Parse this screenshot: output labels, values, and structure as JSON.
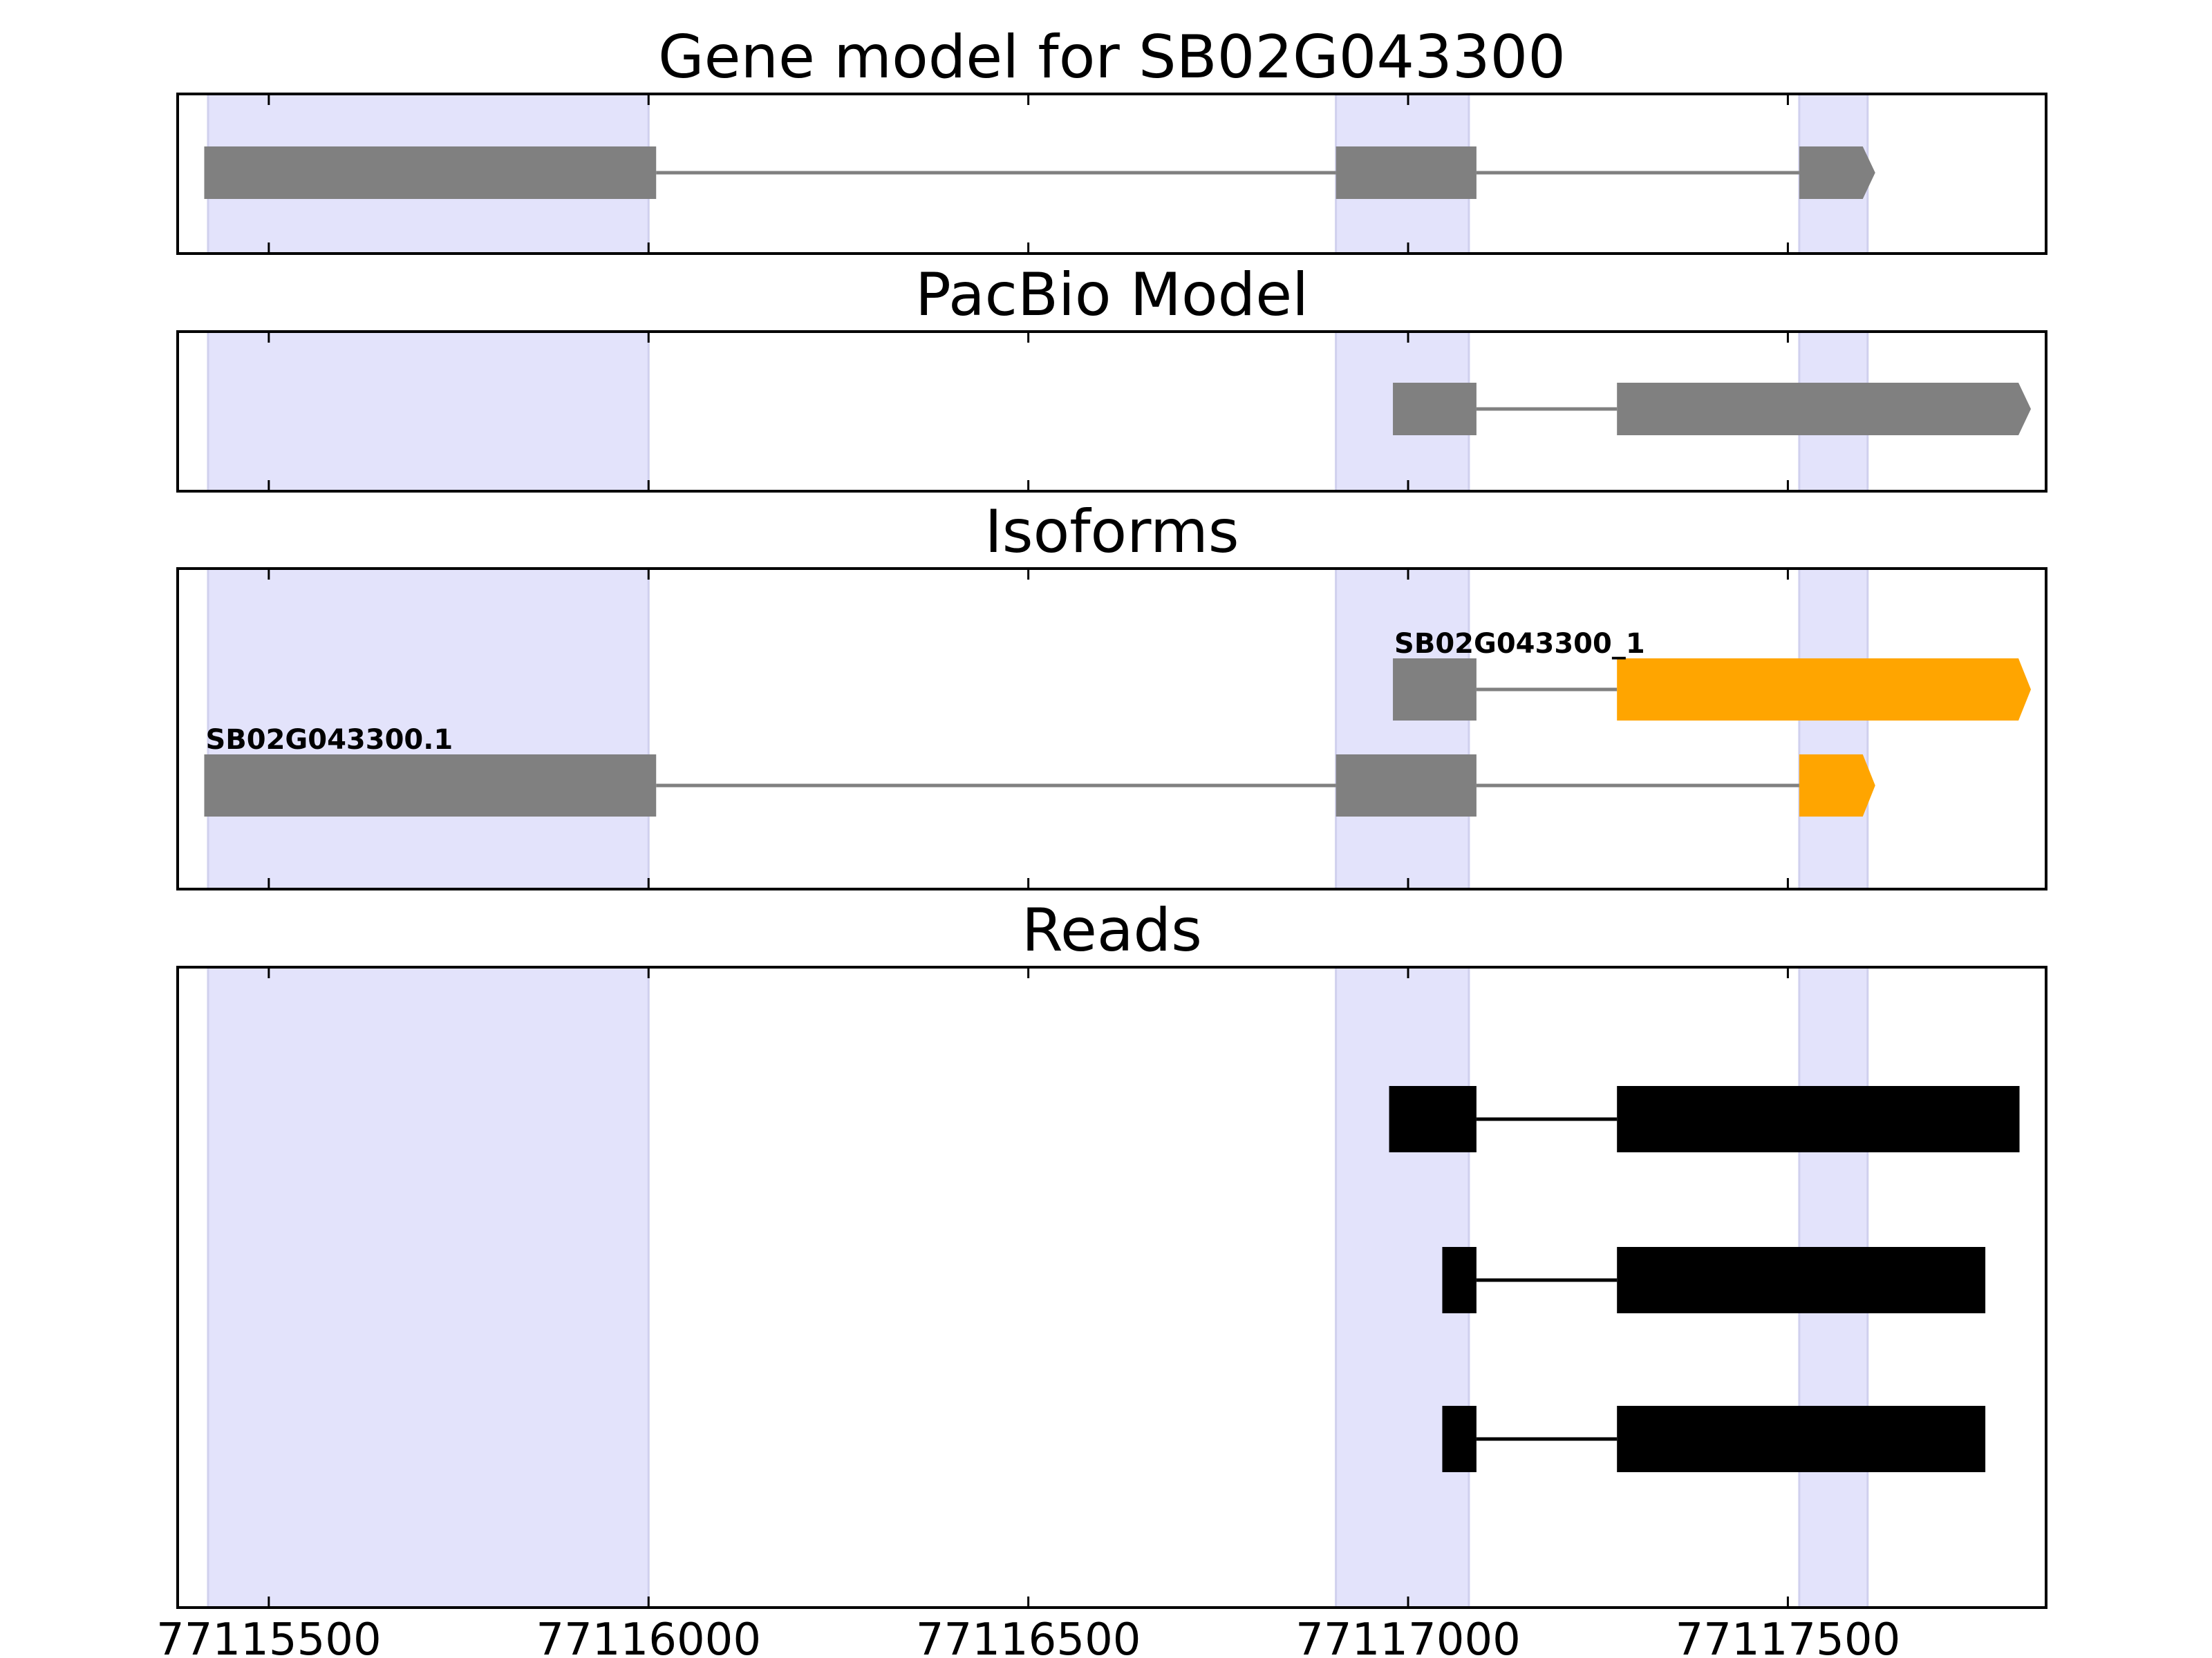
{
  "chart_data": {
    "type": "gene-track",
    "xlim": [
      77115380,
      77117840
    ],
    "x_ticks": [
      77115500,
      77116000,
      77116500,
      77117000,
      77117500
    ],
    "x_tick_labels": [
      "77115500",
      "77116000",
      "77116500",
      "77117000",
      "77117500"
    ],
    "highlight_color": "#e3e3fb",
    "highlight_regions": [
      [
        77115420,
        77116000
      ],
      [
        77116905,
        77117080
      ],
      [
        77117515,
        77117605
      ]
    ],
    "panels": [
      {
        "title": "Gene model for SB02G043300",
        "tracks": [
          {
            "label": "",
            "color": "#808080",
            "exons": [
              [
                77115415,
                77116010
              ],
              [
                77116905,
                77117090
              ],
              [
                77117515,
                77117615
              ]
            ]
          }
        ]
      },
      {
        "title": "PacBio Model",
        "tracks": [
          {
            "label": "",
            "color": "#808080",
            "exons": [
              [
                77116980,
                77117090
              ],
              [
                77117275,
                77117820
              ]
            ]
          }
        ]
      },
      {
        "title": "Isoforms",
        "tracks": [
          {
            "label": "SB02G043300_1",
            "color": "#808080",
            "exons": [
              [
                77116980,
                77117090
              ],
              [
                77117275,
                77117820
              ]
            ],
            "cds_color": "#ffa500",
            "cds": [
              [
                77117275,
                77117820
              ]
            ]
          },
          {
            "label": "SB02G043300.1",
            "color": "#808080",
            "exons": [
              [
                77115415,
                77116010
              ],
              [
                77116905,
                77117090
              ],
              [
                77117515,
                77117615
              ]
            ],
            "cds_color": "#ffa500",
            "cds": [
              [
                77117515,
                77117615
              ]
            ]
          }
        ]
      },
      {
        "title": "Reads",
        "tracks": [
          {
            "label": "",
            "color": "#000000",
            "exons": [
              [
                77116975,
                77117090
              ],
              [
                77117275,
                77117805
              ]
            ]
          },
          {
            "label": "",
            "color": "#000000",
            "exons": [
              [
                77117045,
                77117090
              ],
              [
                77117275,
                77117760
              ]
            ]
          },
          {
            "label": "",
            "color": "#000000",
            "exons": [
              [
                77117045,
                77117090
              ],
              [
                77117275,
                77117760
              ]
            ]
          }
        ]
      }
    ]
  }
}
